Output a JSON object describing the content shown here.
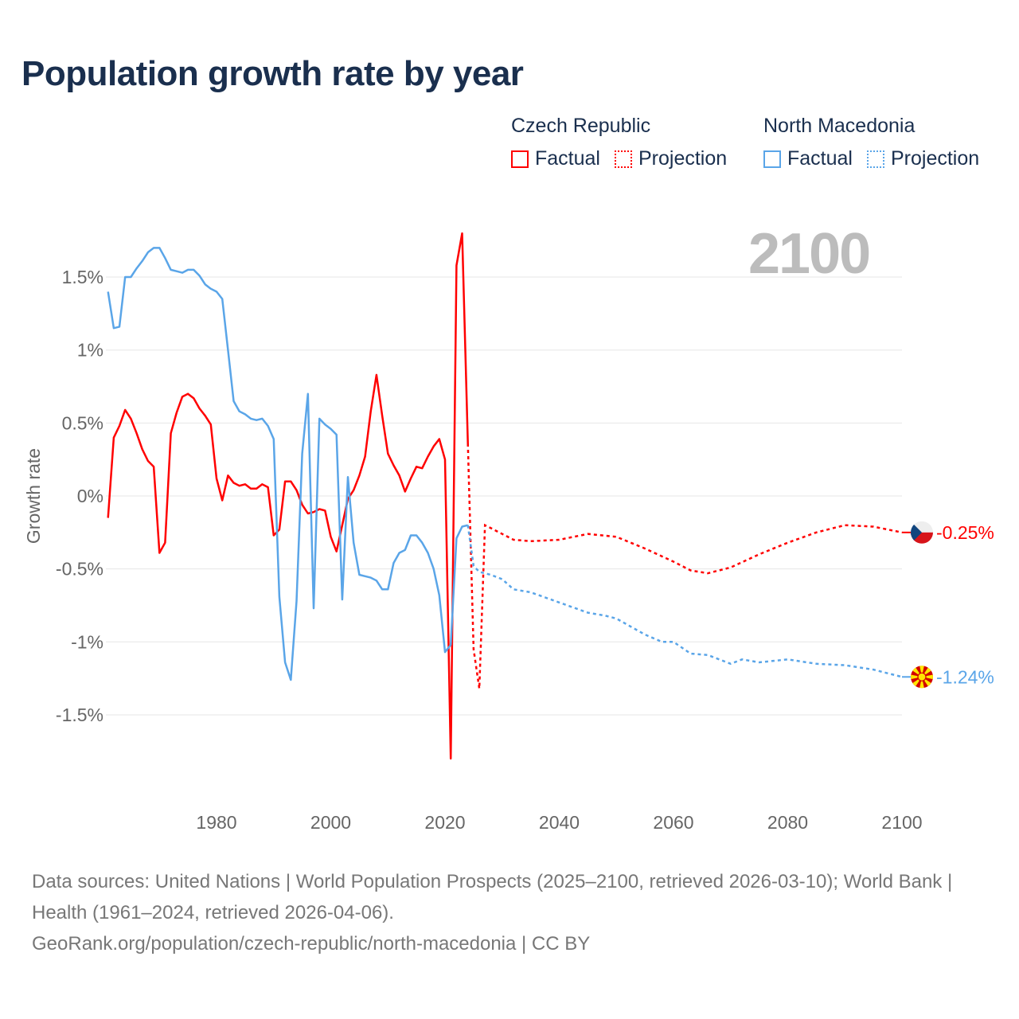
{
  "title": "Population growth rate by year",
  "legend": [
    {
      "name": "Czech Republic",
      "factual": "Factual",
      "projection": "Projection",
      "color": "#ff0000"
    },
    {
      "name": "North Macedonia",
      "factual": "Factual",
      "projection": "Projection",
      "color": "#5aa5e8"
    }
  ],
  "current_year": "2100",
  "footer": {
    "sources": "Data sources: United Nations | World Population Prospects (2025–2100, retrieved 2026-03-10); World Bank | Health (1961–2024, retrieved 2026-04-06).",
    "link": "GeoRank.org/population/czech-republic/north-macedonia | CC BY"
  },
  "chart_data": {
    "type": "line",
    "title": "Population growth rate by year",
    "xlabel": "",
    "ylabel": "Growth rate",
    "xlim": [
      1961,
      2100
    ],
    "ylim": [
      -2.0,
      1.9
    ],
    "x_ticks": [
      1980,
      2000,
      2020,
      2040,
      2060,
      2080,
      2100
    ],
    "x_tick_labels": [
      "1980",
      "2000",
      "2020",
      "2040",
      "2060",
      "2080",
      "2100"
    ],
    "y_ticks": [
      1.5,
      1,
      0.5,
      0,
      -0.5,
      -1,
      -1.5
    ],
    "y_tick_labels": [
      "1.5%",
      "1%",
      "0.5%",
      "0%",
      "-0.5%",
      "-1%",
      "-1.5%"
    ],
    "grid": true,
    "legend_position": "top-right",
    "series": [
      {
        "name": "Czech Republic",
        "color": "#ff0000",
        "end_label": "-0.25%",
        "factual": {
          "x": [
            1961,
            1962,
            1963,
            1964,
            1965,
            1966,
            1967,
            1968,
            1969,
            1970,
            1971,
            1972,
            1973,
            1974,
            1975,
            1976,
            1977,
            1978,
            1979,
            1980,
            1981,
            1982,
            1983,
            1984,
            1985,
            1986,
            1987,
            1988,
            1989,
            1990,
            1991,
            1992,
            1993,
            1994,
            1995,
            1996,
            1997,
            1998,
            1999,
            2000,
            2001,
            2002,
            2003,
            2004,
            2005,
            2006,
            2007,
            2008,
            2009,
            2010,
            2011,
            2012,
            2013,
            2014,
            2015,
            2016,
            2017,
            2018,
            2019,
            2020,
            2021,
            2022,
            2023,
            2024
          ],
          "y": [
            -0.15,
            0.4,
            0.48,
            0.59,
            0.53,
            0.43,
            0.32,
            0.24,
            0.2,
            -0.39,
            -0.32,
            0.43,
            0.57,
            0.68,
            0.7,
            0.67,
            0.6,
            0.55,
            0.49,
            0.12,
            -0.03,
            0.14,
            0.09,
            0.07,
            0.08,
            0.05,
            0.05,
            0.08,
            0.06,
            -0.27,
            -0.23,
            0.1,
            0.1,
            0.04,
            -0.06,
            -0.12,
            -0.11,
            -0.09,
            -0.1,
            -0.28,
            -0.38,
            -0.2,
            -0.02,
            0.04,
            0.14,
            0.27,
            0.58,
            0.83,
            0.55,
            0.29,
            0.21,
            0.14,
            0.03,
            0.12,
            0.2,
            0.19,
            0.27,
            0.34,
            0.39,
            0.25,
            -1.8,
            1.58,
            1.8,
            0.36
          ]
        },
        "projection": {
          "x": [
            2024,
            2025,
            2026,
            2027,
            2028,
            2030,
            2032,
            2035,
            2040,
            2045,
            2050,
            2055,
            2060,
            2063,
            2066,
            2070,
            2075,
            2080,
            2085,
            2090,
            2095,
            2100
          ],
          "y": [
            0.36,
            -1.05,
            -1.32,
            -0.2,
            -0.22,
            -0.26,
            -0.3,
            -0.31,
            -0.3,
            -0.26,
            -0.28,
            -0.36,
            -0.45,
            -0.51,
            -0.53,
            -0.49,
            -0.4,
            -0.32,
            -0.25,
            -0.2,
            -0.21,
            -0.25
          ]
        }
      },
      {
        "name": "North Macedonia",
        "color": "#5aa5e8",
        "end_label": "-1.24%",
        "factual": {
          "x": [
            1961,
            1962,
            1963,
            1964,
            1965,
            1966,
            1967,
            1968,
            1969,
            1970,
            1971,
            1972,
            1973,
            1974,
            1975,
            1976,
            1977,
            1978,
            1979,
            1980,
            1981,
            1982,
            1983,
            1984,
            1985,
            1986,
            1987,
            1988,
            1989,
            1990,
            1991,
            1992,
            1993,
            1994,
            1995,
            1996,
            1997,
            1998,
            1999,
            2000,
            2001,
            2002,
            2003,
            2004,
            2005,
            2006,
            2007,
            2008,
            2009,
            2010,
            2011,
            2012,
            2013,
            2014,
            2015,
            2016,
            2017,
            2018,
            2019,
            2020,
            2021,
            2022,
            2023,
            2024
          ],
          "y": [
            1.4,
            1.15,
            1.16,
            1.5,
            1.5,
            1.56,
            1.61,
            1.67,
            1.7,
            1.7,
            1.63,
            1.55,
            1.54,
            1.53,
            1.55,
            1.55,
            1.51,
            1.45,
            1.42,
            1.4,
            1.35,
            1.0,
            0.65,
            0.58,
            0.56,
            0.53,
            0.52,
            0.53,
            0.48,
            0.39,
            -0.69,
            -1.14,
            -1.26,
            -0.72,
            0.29,
            0.7,
            -0.77,
            0.53,
            0.49,
            0.46,
            0.42,
            -0.71,
            0.13,
            -0.32,
            -0.54,
            -0.55,
            -0.56,
            -0.58,
            -0.64,
            -0.64,
            -0.46,
            -0.39,
            -0.37,
            -0.27,
            -0.27,
            -0.32,
            -0.39,
            -0.5,
            -0.68,
            -1.07,
            -1.02,
            -0.29,
            -0.21,
            -0.2
          ]
        },
        "projection": {
          "x": [
            2024,
            2025,
            2026,
            2028,
            2030,
            2032,
            2035,
            2040,
            2045,
            2048,
            2050,
            2055,
            2058,
            2060,
            2063,
            2066,
            2070,
            2072,
            2075,
            2080,
            2085,
            2090,
            2095,
            2100
          ],
          "y": [
            -0.2,
            -0.48,
            -0.52,
            -0.54,
            -0.57,
            -0.64,
            -0.66,
            -0.73,
            -0.8,
            -0.82,
            -0.84,
            -0.95,
            -1.0,
            -1.0,
            -1.08,
            -1.09,
            -1.15,
            -1.12,
            -1.14,
            -1.12,
            -1.15,
            -1.16,
            -1.19,
            -1.24
          ]
        }
      }
    ]
  }
}
